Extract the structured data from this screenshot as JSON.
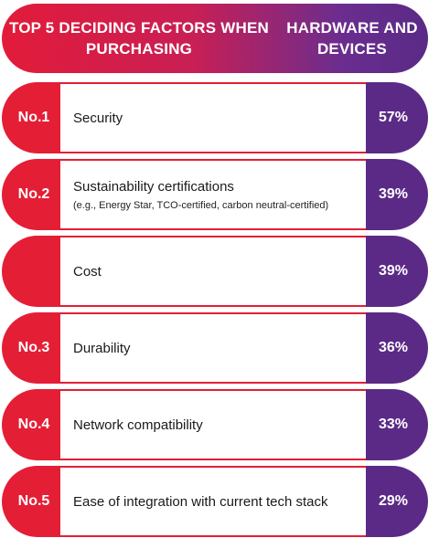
{
  "title": {
    "line1": "TOP 5 DECIDING FACTORS WHEN PURCHASING",
    "line2": "HARDWARE AND DEVICES"
  },
  "colors": {
    "rank_bg": "#e41e35",
    "value_bg": "#5b2a86",
    "title_gradient_start": "#e31b3a",
    "title_gradient_end": "#5a2a86"
  },
  "chart_data": {
    "type": "table",
    "title": "TOP 5 DECIDING FACTORS WHEN PURCHASING HARDWARE AND DEVICES",
    "rows": [
      {
        "rank": "No.1",
        "label": "Security",
        "sublabel": "",
        "value": "57%"
      },
      {
        "rank": "No.2",
        "label": "Sustainability certifications",
        "sublabel": "(e.g., Energy Star, TCO-certified, carbon neutral-certified)",
        "value": "39%"
      },
      {
        "rank": "",
        "label": "Cost",
        "sublabel": "",
        "value": "39%"
      },
      {
        "rank": "No.3",
        "label": "Durability",
        "sublabel": "",
        "value": "36%"
      },
      {
        "rank": "No.4",
        "label": "Network compatibility",
        "sublabel": "",
        "value": "33%"
      },
      {
        "rank": "No.5",
        "label": "Ease of integration with current tech stack",
        "sublabel": "",
        "value": "29%"
      }
    ]
  }
}
